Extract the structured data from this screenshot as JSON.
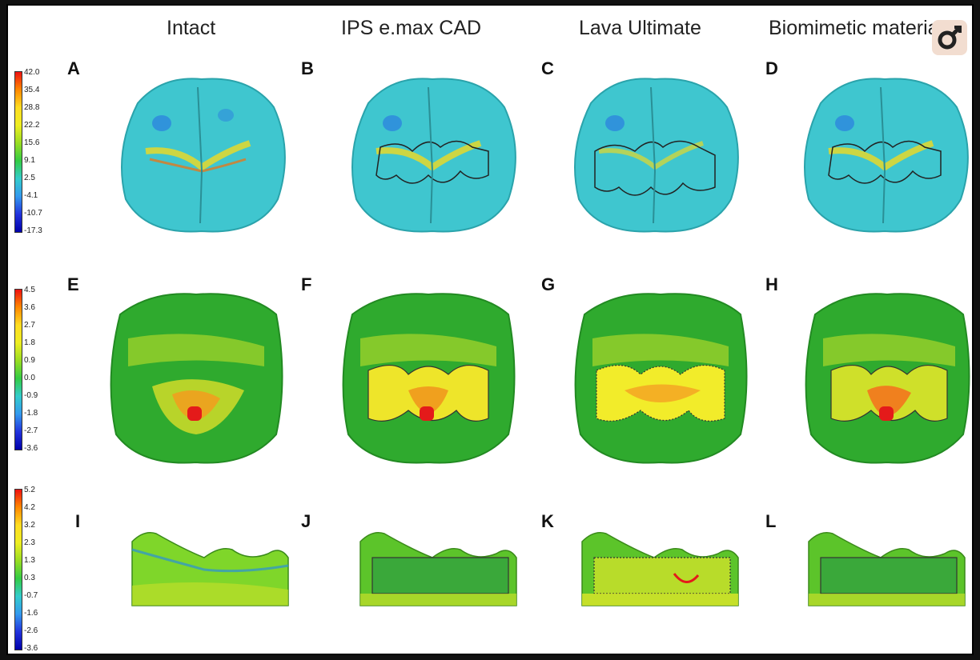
{
  "columns": [
    "Intact",
    "IPS e.max CAD",
    "Lava Ultimate",
    "Biomimetic material"
  ],
  "panel_labels": [
    "A",
    "B",
    "C",
    "D",
    "E",
    "F",
    "G",
    "H",
    "I",
    "J",
    "K",
    "L"
  ],
  "scales": [
    {
      "ticks": [
        "42.0",
        "35.4",
        "28.8",
        "22.2",
        "15.6",
        "9.1",
        "2.5",
        "-4.1",
        "-10.7",
        "-17.3"
      ]
    },
    {
      "ticks": [
        "4.5",
        "3.6",
        "2.7",
        "1.8",
        "0.9",
        "0.0",
        "-0.9",
        "-1.8",
        "-2.7",
        "-3.6"
      ]
    },
    {
      "ticks": [
        "5.2",
        "4.2",
        "3.2",
        "2.3",
        "1.3",
        "0.3",
        "-0.7",
        "-1.6",
        "-2.6",
        "-3.6"
      ]
    }
  ],
  "colors": {
    "row1_base": "#3fc6cf",
    "row2_base": "#2faa2e",
    "row3_base": "#7fd62a",
    "hot": "#e41a1a",
    "warm": "#f5a623",
    "yellow": "#f2ec2a"
  },
  "icons": {
    "badge": "gender-male-icon"
  }
}
